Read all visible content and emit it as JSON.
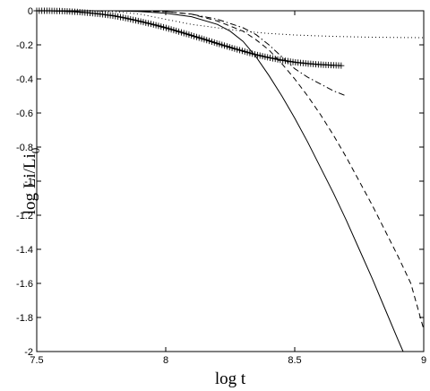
{
  "chart_data": {
    "type": "line",
    "title": "",
    "xlabel": "log t",
    "ylabel_main": "log Li/Li",
    "ylabel_sub": "0",
    "xlim": [
      7.5,
      9
    ],
    "ylim": [
      -2,
      0
    ],
    "xticks": [
      "7.5",
      "8",
      "8.5",
      "9"
    ],
    "xtick_values": [
      7.5,
      8,
      8.5,
      9
    ],
    "yticks": [
      "0",
      "-0.2",
      "-0.4",
      "-0.6",
      "-0.8",
      "-1",
      "-1.2",
      "-1.4",
      "-1.6",
      "-1.8",
      "-2"
    ],
    "ytick_values": [
      0,
      -0.2,
      -0.4,
      -0.6,
      -0.8,
      -1,
      -1.2,
      -1.4,
      -1.6,
      -1.8,
      -2
    ],
    "grid": false,
    "series": [
      {
        "style": "solid",
        "x": [
          7.5,
          7.7,
          7.8,
          7.9,
          8.0,
          8.1,
          8.2,
          8.25,
          8.3,
          8.35,
          8.4,
          8.45,
          8.5,
          8.55,
          8.6,
          8.65,
          8.7,
          8.75,
          8.8,
          8.85,
          8.9,
          8.92
        ],
        "y": [
          0,
          0,
          0,
          -0.005,
          -0.015,
          -0.035,
          -0.08,
          -0.12,
          -0.18,
          -0.27,
          -0.38,
          -0.5,
          -0.63,
          -0.77,
          -0.92,
          -1.07,
          -1.23,
          -1.4,
          -1.57,
          -1.75,
          -1.93,
          -2.0
        ]
      },
      {
        "style": "dashed",
        "x": [
          7.5,
          7.8,
          8.0,
          8.1,
          8.2,
          8.3,
          8.35,
          8.4,
          8.45,
          8.5,
          8.55,
          8.6,
          8.65,
          8.7,
          8.75,
          8.8,
          8.85,
          8.9,
          8.95,
          9.0
        ],
        "y": [
          0,
          0,
          -0.005,
          -0.02,
          -0.06,
          -0.12,
          -0.17,
          -0.23,
          -0.31,
          -0.4,
          -0.5,
          -0.61,
          -0.73,
          -0.86,
          -1.0,
          -1.14,
          -1.29,
          -1.44,
          -1.6,
          -1.87
        ]
      },
      {
        "style": "dashdot",
        "x": [
          7.5,
          7.8,
          8.0,
          8.1,
          8.2,
          8.3,
          8.35,
          8.4,
          8.45,
          8.5,
          8.55,
          8.6,
          8.65,
          8.7
        ],
        "y": [
          0,
          0,
          -0.005,
          -0.02,
          -0.05,
          -0.1,
          -0.14,
          -0.2,
          -0.27,
          -0.34,
          -0.39,
          -0.43,
          -0.47,
          -0.5
        ]
      },
      {
        "style": "dotted",
        "x": [
          7.5,
          7.7,
          7.8,
          7.9,
          8.0,
          8.1,
          8.2,
          8.3,
          8.4,
          8.5,
          8.6,
          8.7,
          8.8,
          8.9,
          9.0
        ],
        "y": [
          0,
          0,
          -0.005,
          -0.02,
          -0.05,
          -0.08,
          -0.1,
          -0.12,
          -0.133,
          -0.142,
          -0.148,
          -0.152,
          -0.155,
          -0.157,
          -0.158
        ]
      },
      {
        "style": "plus",
        "x": [
          7.5,
          7.55,
          7.6,
          7.65,
          7.7,
          7.75,
          7.8,
          7.85,
          7.9,
          7.95,
          8.0,
          8.05,
          8.1,
          8.15,
          8.2,
          8.25,
          8.3,
          8.35,
          8.4,
          8.45,
          8.5,
          8.55,
          8.6,
          8.65,
          8.68
        ],
        "y": [
          0,
          0,
          -0.002,
          -0.006,
          -0.012,
          -0.02,
          -0.03,
          -0.045,
          -0.062,
          -0.08,
          -0.1,
          -0.122,
          -0.145,
          -0.168,
          -0.192,
          -0.215,
          -0.237,
          -0.258,
          -0.275,
          -0.29,
          -0.302,
          -0.31,
          -0.316,
          -0.32,
          -0.322
        ]
      }
    ]
  }
}
